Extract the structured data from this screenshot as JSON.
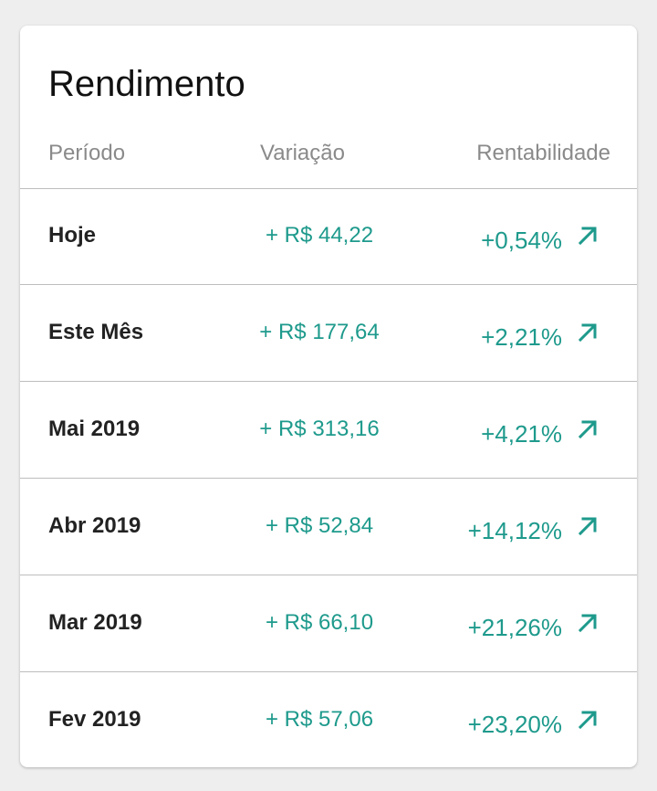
{
  "title": "Rendimento",
  "headers": {
    "period": "Período",
    "variation": "Variação",
    "profitability": "Rentabilidade"
  },
  "colors": {
    "accent": "#1e9a8c",
    "divider": "#bdbdbd",
    "header_text": "#8a8a8a"
  },
  "rows": [
    {
      "period": "Hoje",
      "variation": "+ R$ 44,22",
      "profitability": "+0,54%",
      "icon": "trending-up-arrow-icon"
    },
    {
      "period": "Este Mês",
      "variation": "+ R$ 177,64",
      "profitability": "+2,21%",
      "icon": "trending-up-arrow-icon"
    },
    {
      "period": "Mai 2019",
      "variation": "+ R$ 313,16",
      "profitability": "+4,21%",
      "icon": "trending-up-arrow-icon"
    },
    {
      "period": "Abr 2019",
      "variation": "+ R$ 52,84",
      "profitability": "+14,12%",
      "icon": "trending-up-arrow-icon"
    },
    {
      "period": "Mar 2019",
      "variation": "+ R$ 66,10",
      "profitability": "+21,26%",
      "icon": "trending-up-arrow-icon"
    },
    {
      "period": "Fev 2019",
      "variation": "+ R$ 57,06",
      "profitability": "+23,20%",
      "icon": "trending-up-arrow-icon"
    }
  ]
}
